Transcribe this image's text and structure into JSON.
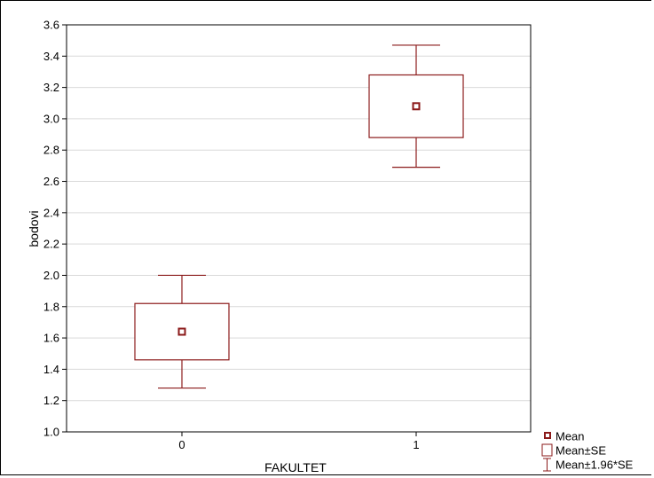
{
  "chart_data": {
    "type": "box",
    "xlabel": "FAKULTET",
    "ylabel": "bodovi",
    "ylim": [
      1.0,
      3.6
    ],
    "yticks": [
      "1.0",
      "1.2",
      "1.4",
      "1.6",
      "1.8",
      "2.0",
      "2.2",
      "2.4",
      "2.6",
      "2.8",
      "3.0",
      "3.2",
      "3.4",
      "3.6"
    ],
    "categories": [
      "0",
      "1"
    ],
    "groups": [
      {
        "category": "0",
        "mean": 1.64,
        "se_low": 1.46,
        "se_high": 1.82,
        "ci_low": 1.28,
        "ci_high": 2.0
      },
      {
        "category": "1",
        "mean": 3.08,
        "se_low": 2.88,
        "se_high": 3.28,
        "ci_low": 2.69,
        "ci_high": 3.47
      }
    ],
    "legend": {
      "placement": "bottom-right",
      "items": [
        {
          "label": "Mean",
          "symbol": "mean-marker"
        },
        {
          "label": "Mean±SE",
          "symbol": "box"
        },
        {
          "label": "Mean±1.96*SE",
          "symbol": "whisker"
        }
      ]
    },
    "grid": "horizontal",
    "colors": {
      "mark": "#8b1a1a",
      "grid": "#d9d9d9",
      "axis": "#000000"
    }
  }
}
